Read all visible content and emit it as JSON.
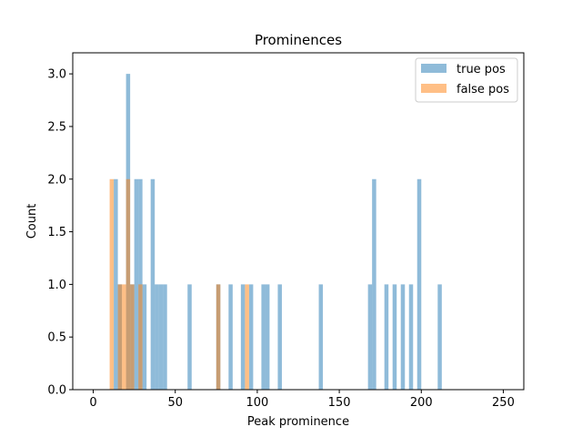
{
  "chart_data": {
    "type": "bar",
    "title": "Prominences",
    "xlabel": "Peak prominence",
    "ylabel": "Count",
    "xlim": [
      -12.5,
      262.5
    ],
    "ylim": [
      0,
      3.2
    ],
    "bin_width": 2.5,
    "xticks": [
      0,
      50,
      100,
      150,
      200,
      250
    ],
    "yticks": [
      0.0,
      0.5,
      1.0,
      1.5,
      2.0,
      2.5,
      3.0
    ],
    "xtick_labels": [
      "0",
      "50",
      "100",
      "150",
      "200",
      "250"
    ],
    "ytick_labels": [
      "0.0",
      "0.5",
      "1.0",
      "1.5",
      "2.0",
      "2.5",
      "3.0"
    ],
    "grid": false,
    "legend_position": "top-right",
    "bar_alpha": 0.5,
    "series": [
      {
        "name": "true pos",
        "color": "#1f77b4",
        "bars": [
          {
            "x": 12.5,
            "count": 2
          },
          {
            "x": 15,
            "count": 1
          },
          {
            "x": 20,
            "count": 3
          },
          {
            "x": 22.5,
            "count": 1
          },
          {
            "x": 25,
            "count": 2
          },
          {
            "x": 27.5,
            "count": 2
          },
          {
            "x": 30,
            "count": 1
          },
          {
            "x": 35,
            "count": 2
          },
          {
            "x": 37.5,
            "count": 1
          },
          {
            "x": 40,
            "count": 1
          },
          {
            "x": 42.5,
            "count": 1
          },
          {
            "x": 57.5,
            "count": 1
          },
          {
            "x": 75,
            "count": 1
          },
          {
            "x": 82.5,
            "count": 1
          },
          {
            "x": 90,
            "count": 1
          },
          {
            "x": 95,
            "count": 1
          },
          {
            "x": 102.5,
            "count": 1
          },
          {
            "x": 105,
            "count": 1
          },
          {
            "x": 112.5,
            "count": 1
          },
          {
            "x": 137.5,
            "count": 1
          },
          {
            "x": 167.5,
            "count": 1
          },
          {
            "x": 170,
            "count": 2
          },
          {
            "x": 177.5,
            "count": 1
          },
          {
            "x": 182.5,
            "count": 1
          },
          {
            "x": 187.5,
            "count": 1
          },
          {
            "x": 192.5,
            "count": 1
          },
          {
            "x": 197.5,
            "count": 2
          },
          {
            "x": 210,
            "count": 1
          }
        ]
      },
      {
        "name": "false pos",
        "color": "#ff7f0e",
        "bars": [
          {
            "x": 10,
            "count": 2
          },
          {
            "x": 15,
            "count": 1
          },
          {
            "x": 17.5,
            "count": 1
          },
          {
            "x": 20,
            "count": 2
          },
          {
            "x": 22.5,
            "count": 1
          },
          {
            "x": 27.5,
            "count": 1
          },
          {
            "x": 75,
            "count": 1
          },
          {
            "x": 92.5,
            "count": 1
          }
        ]
      }
    ]
  }
}
